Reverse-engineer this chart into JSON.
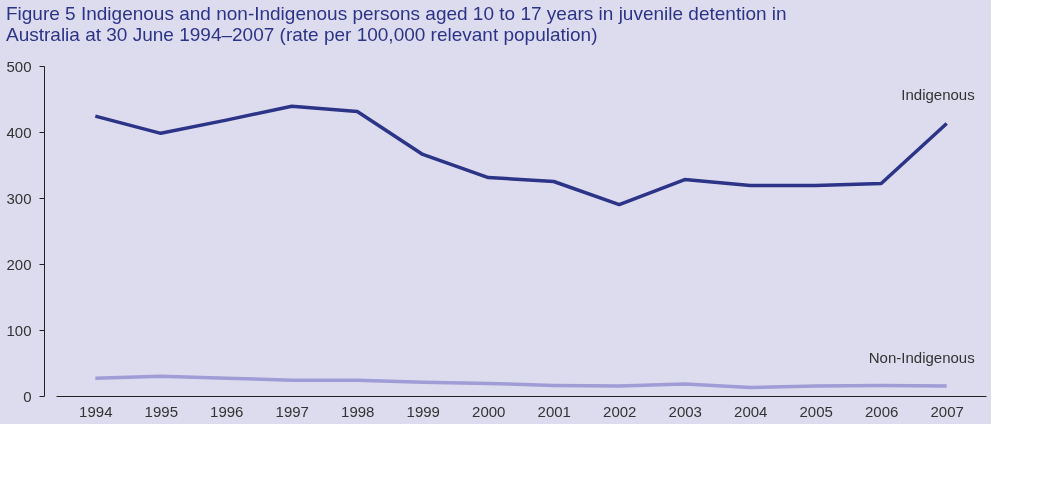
{
  "chart_data": {
    "type": "line",
    "title": "Figure 5 Indigenous and non-Indigenous persons aged 10 to 17 years in juvenile detention in Australia at 30 June 1994–2007 (rate per 100,000 relevant population)",
    "categories": [
      "1994",
      "1995",
      "1996",
      "1997",
      "1998",
      "1999",
      "2000",
      "2001",
      "2002",
      "2003",
      "2004",
      "2005",
      "2006",
      "2007"
    ],
    "series": [
      {
        "name": "Indigenous",
        "color": "#2b3487",
        "values": [
          424,
          398,
          418,
          439,
          431,
          366,
          331,
          325,
          290,
          328,
          319,
          319,
          322,
          413
        ]
      },
      {
        "name": "Non-Indigenous",
        "color": "#a09cd6",
        "values": [
          27,
          30,
          27,
          24,
          24,
          21,
          19,
          16,
          15,
          18,
          13,
          15,
          16,
          15
        ]
      }
    ],
    "ylim": [
      0,
      500
    ],
    "yticks": [
      0,
      100,
      200,
      300,
      400,
      500
    ],
    "grid": false,
    "legend": false,
    "marker": "none",
    "line_style": "solid"
  }
}
